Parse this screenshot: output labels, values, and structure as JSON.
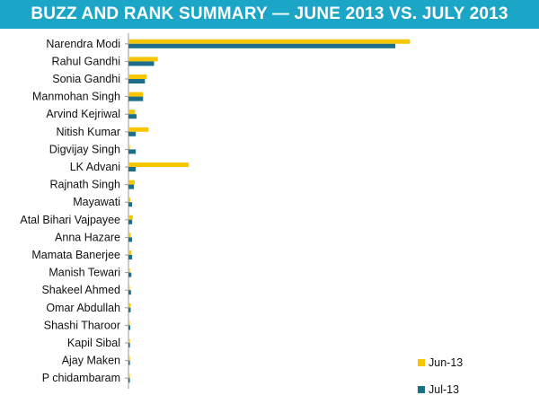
{
  "header": {
    "title": "BUZZ AND RANK SUMMARY — JUNE 2013 VS. JULY 2013"
  },
  "colors": {
    "title_background": "#1ba6c8",
    "series_jun": "#f7c600",
    "series_jul": "#1b6f8a",
    "axis": "#999999"
  },
  "chart_data": {
    "type": "bar",
    "orientation": "horizontal",
    "title": "BUZZ AND RANK SUMMARY — JUNE 2013 VS. JULY 2013",
    "xlabel": "",
    "ylabel": "",
    "xlim": [
      0,
      100
    ],
    "grid": false,
    "legend": "bottom-right",
    "categories": [
      "Narendra Modi",
      "Rahul Gandhi",
      "Sonia Gandhi",
      "Manmohan Singh",
      "Arvind Kejriwal",
      "Nitish Kumar",
      "Digvijay Singh",
      "LK Advani",
      "Rajnath Singh",
      "Mayawati",
      "Atal Bihari Vajpayee",
      "Anna Hazare",
      "Mamata Banerjee",
      "Manish Tewari",
      "Shakeel Ahmed",
      "Omar Abdullah",
      "Shashi Tharoor",
      "Kapil Sibal",
      "Ajay Maken",
      "P chidambaram"
    ],
    "series": [
      {
        "name": "Jun-13",
        "color": "#f7c600",
        "values": [
          77,
          8,
          5,
          4,
          1.8,
          5.5,
          0.3,
          16.5,
          1.7,
          0.5,
          1.2,
          0.6,
          0.8,
          0.4,
          0.2,
          0.6,
          0.2,
          0.4,
          0.4,
          0.3
        ]
      },
      {
        "name": "Jul-13",
        "color": "#1b6f8a",
        "values": [
          73,
          7,
          4.5,
          4,
          2.2,
          2,
          2,
          2,
          1.5,
          1,
          1,
          1,
          1,
          0.8,
          0.7,
          0.6,
          0.5,
          0.4,
          0.4,
          0.4
        ]
      }
    ]
  }
}
